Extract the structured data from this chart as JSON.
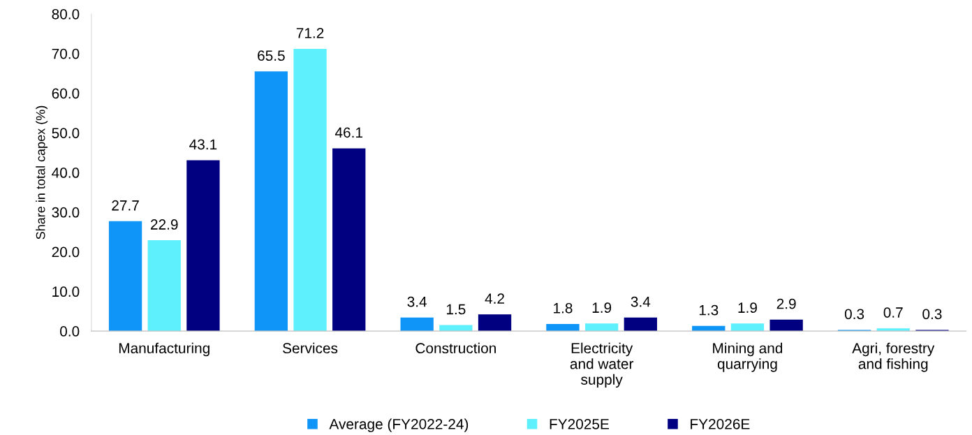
{
  "chart_data": {
    "type": "bar",
    "ylabel": "Share in total capex (%)",
    "categories": [
      "Manufacturing",
      "Services",
      "Construction",
      "Electricity\nand water\nsupply",
      "Mining and\nquarrying",
      "Agri, forestry\nand fishing"
    ],
    "series": [
      {
        "name": "Average (FY2022-24)",
        "color": "#0f95f7",
        "values": [
          27.7,
          65.5,
          3.4,
          1.8,
          1.3,
          0.3
        ]
      },
      {
        "name": "FY2025E",
        "color": "#5ff0fd",
        "values": [
          22.9,
          71.2,
          1.5,
          1.9,
          1.9,
          0.7
        ]
      },
      {
        "name": "FY2026E",
        "color": "#000080",
        "values": [
          43.1,
          46.1,
          4.2,
          3.4,
          2.9,
          0.3
        ]
      }
    ],
    "ylim": [
      0,
      80
    ],
    "yticks": [
      {
        "value": 0,
        "label": "0.0"
      },
      {
        "value": 10,
        "label": "10.0"
      },
      {
        "value": 20,
        "label": "20.0"
      },
      {
        "value": 30,
        "label": "30.0"
      },
      {
        "value": 40,
        "label": "40.0"
      },
      {
        "value": 50,
        "label": "50.0"
      },
      {
        "value": 60,
        "label": "60.0"
      },
      {
        "value": 70,
        "label": "70.0"
      },
      {
        "value": 80,
        "label": "80.0"
      }
    ],
    "data_labels": true,
    "grid": false,
    "legend": "bottom"
  }
}
